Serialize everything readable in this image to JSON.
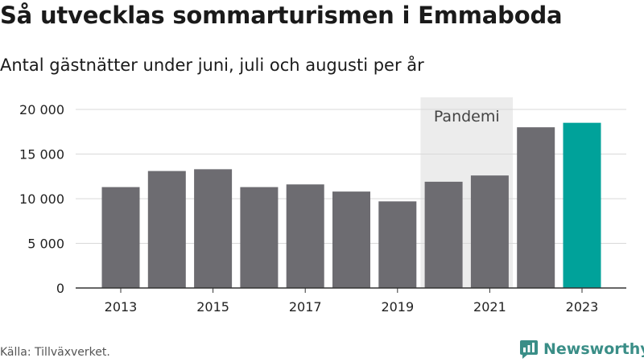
{
  "title": "Så utvecklas sommarturismen i Emmaboda",
  "subtitle": "Antal gästnätter under juni, juli och augusti per år",
  "source": "Källa: Tillväxverket.",
  "brand": {
    "name": "Newsworthy",
    "color": "#3a8e87",
    "icon": "newsworthy-logo-icon"
  },
  "colors": {
    "bar": "#6d6c71",
    "highlight": "#00a29a",
    "shade": "#ececec",
    "grid": "#d9d9d9",
    "axis": "#333333"
  },
  "chart_data": {
    "type": "bar",
    "categories": [
      "2013",
      "2014",
      "2015",
      "2016",
      "2017",
      "2018",
      "2019",
      "2020",
      "2021",
      "2022",
      "2023"
    ],
    "tick_labels": [
      "2013",
      "2015",
      "2017",
      "2019",
      "2021",
      "2023"
    ],
    "values": [
      11300,
      13100,
      13300,
      11300,
      11600,
      10800,
      9700,
      11900,
      12600,
      18000,
      18500
    ],
    "highlight_category": "2023",
    "ylim": [
      0,
      20000
    ],
    "yticks": [
      0,
      5000,
      10000,
      15000,
      20000
    ],
    "ytick_labels": [
      "0",
      "5 000",
      "10 000",
      "15 000",
      "20 000"
    ],
    "grid": true,
    "annotation": {
      "label": "Pandemi",
      "from": "2020",
      "to": "2021"
    },
    "xlabel": "",
    "ylabel": ""
  }
}
